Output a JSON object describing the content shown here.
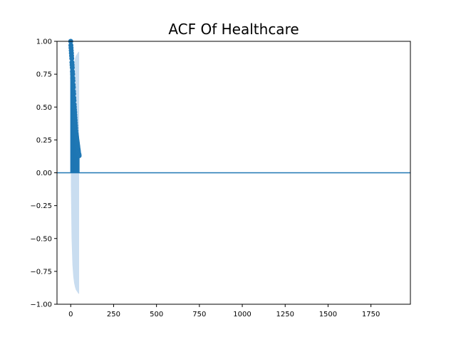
{
  "chart_data": {
    "type": "scatter",
    "title": "ACF Of Healthcare",
    "xlabel": "",
    "ylabel": "",
    "xlim": [
      -80,
      1980
    ],
    "ylim": [
      -1.0,
      1.0
    ],
    "xticks": [
      0,
      250,
      500,
      750,
      1000,
      1250,
      1500,
      1750
    ],
    "yticks": [
      -1.0,
      -0.75,
      -0.5,
      -0.25,
      0.0,
      0.25,
      0.5,
      0.75,
      1.0
    ],
    "xtick_labels": [
      "0",
      "250",
      "500",
      "750",
      "1000",
      "1250",
      "1500",
      "1750"
    ],
    "ytick_labels": [
      "−1.00",
      "−0.75",
      "−0.50",
      "−0.25",
      "0.00",
      "0.25",
      "0.50",
      "0.75",
      "1.00"
    ],
    "grid": false,
    "zero_line": 0.0,
    "colors": {
      "stem": "#1f77b4",
      "marker": "#1f77b4",
      "confidence_band": "#c6dbef",
      "zero_line": "#1f77b4"
    },
    "series": [
      {
        "lags": [
          0,
          1,
          2,
          3,
          4,
          5,
          6,
          7,
          8,
          9,
          10,
          11,
          12,
          13,
          14,
          15,
          16,
          17,
          18,
          19,
          20,
          21,
          22,
          23,
          24,
          25,
          26,
          27,
          28,
          29,
          30,
          31,
          32,
          33,
          34,
          35,
          36,
          37,
          38,
          39,
          40,
          41,
          42,
          43,
          44,
          45,
          46,
          47,
          48,
          49
        ],
        "values": [
          1.0,
          0.97,
          0.95,
          0.93,
          0.91,
          0.89,
          0.87,
          0.84,
          0.82,
          0.8,
          0.77,
          0.75,
          0.72,
          0.7,
          0.67,
          0.65,
          0.62,
          0.6,
          0.57,
          0.55,
          0.52,
          0.5,
          0.48,
          0.46,
          0.44,
          0.42,
          0.4,
          0.38,
          0.36,
          0.34,
          0.32,
          0.3,
          0.29,
          0.28,
          0.27,
          0.26,
          0.25,
          0.24,
          0.23,
          0.22,
          0.21,
          0.2,
          0.19,
          0.18,
          0.17,
          0.16,
          0.15,
          0.14,
          0.14,
          0.13
        ]
      }
    ],
    "confidence_band": {
      "lags": [
        1,
        5,
        10,
        15,
        20,
        25,
        30,
        35,
        40,
        45,
        49
      ],
      "upper": [
        0.1,
        0.5,
        0.7,
        0.79,
        0.84,
        0.87,
        0.89,
        0.9,
        0.91,
        0.92,
        0.92
      ],
      "lower": [
        -0.1,
        -0.5,
        -0.7,
        -0.79,
        -0.84,
        -0.87,
        -0.89,
        -0.9,
        -0.91,
        -0.92,
        -0.92
      ]
    }
  }
}
